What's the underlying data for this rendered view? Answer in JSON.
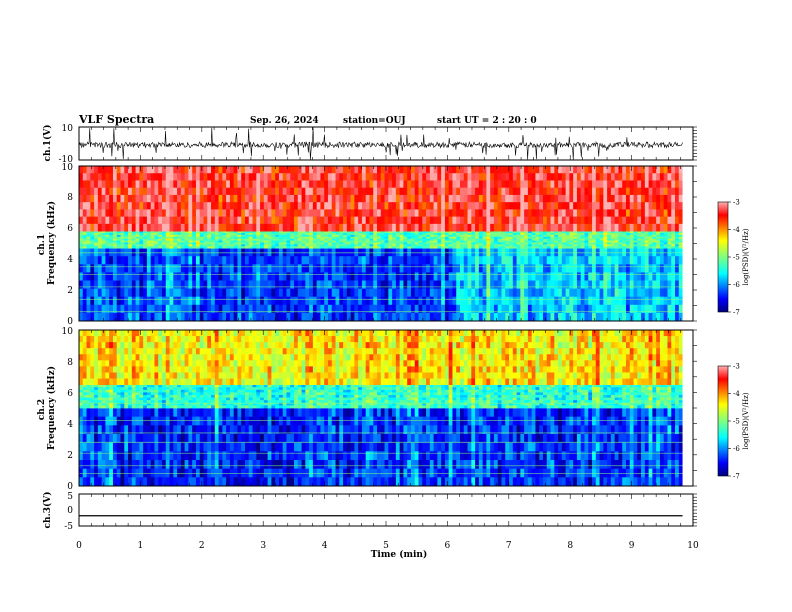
{
  "header": {
    "title": "VLF Spectra",
    "date": "Sep. 26, 2024",
    "station": "station=OUJ",
    "start": "start  UT =  2 : 20 : 0"
  },
  "chart_data": [
    {
      "type": "line",
      "panel": "ch1-waveform",
      "ylabel": "ch.1(V)",
      "ylim": [
        -10,
        10
      ],
      "ytick_labels": [
        "10",
        "-10"
      ],
      "xlim": [
        0,
        10
      ],
      "description_values": {
        "baseline": 0,
        "typical_range": [
          -3,
          2
        ],
        "spike_max": 10,
        "spike_min": -10
      }
    },
    {
      "type": "heatmap",
      "panel": "ch1-spectrogram",
      "ylabel": "ch.1\nFrequency (kHz)",
      "ylim": [
        0,
        10
      ],
      "ytick_labels": [
        "0",
        "2",
        "4",
        "6",
        "8",
        "10"
      ],
      "xlim": [
        0,
        10
      ],
      "data_extent_x": [
        0,
        9.83
      ],
      "colorbar": {
        "label": "log(PSD)(V²/Hz)",
        "range": [
          -7,
          -3
        ],
        "tick_labels": [
          "-3",
          "-4",
          "-5",
          "-6",
          "-7"
        ]
      },
      "bands": [
        {
          "f_range": [
            0,
            4.7
          ],
          "logpsd": -6.3
        },
        {
          "f_range": [
            4.7,
            5.8
          ],
          "logpsd": -5.2
        },
        {
          "f_range": [
            5.8,
            10
          ],
          "logpsd": -3.4
        }
      ]
    },
    {
      "type": "heatmap",
      "panel": "ch2-spectrogram",
      "ylabel": "ch.2\nFrequency (kHz)",
      "ylim": [
        0,
        10
      ],
      "ytick_labels": [
        "0",
        "2",
        "4",
        "6",
        "8",
        "10"
      ],
      "xlim": [
        0,
        10
      ],
      "data_extent_x": [
        0,
        9.83
      ],
      "colorbar": {
        "label": "log(PSD)(V²/Hz)",
        "range": [
          -7,
          -3
        ],
        "tick_labels": [
          "-3",
          "-4",
          "-5",
          "-6",
          "-7"
        ]
      },
      "bands": [
        {
          "f_range": [
            0,
            5
          ],
          "logpsd": -6.4
        },
        {
          "f_range": [
            5,
            6.5
          ],
          "logpsd": -5.4
        },
        {
          "f_range": [
            6.5,
            10
          ],
          "logpsd": -4.4
        }
      ]
    },
    {
      "type": "line",
      "panel": "ch3-waveform",
      "ylabel": "ch.3(V)",
      "ylim": [
        -5,
        5
      ],
      "ytick_labels": [
        "5",
        "0",
        "-5"
      ],
      "xlim": [
        0,
        10
      ],
      "value": -1.8
    }
  ],
  "xaxis": {
    "label": "Time (min)",
    "tick_labels": [
      "0",
      "1",
      "2",
      "3",
      "4",
      "5",
      "6",
      "7",
      "8",
      "9",
      "10"
    ]
  }
}
